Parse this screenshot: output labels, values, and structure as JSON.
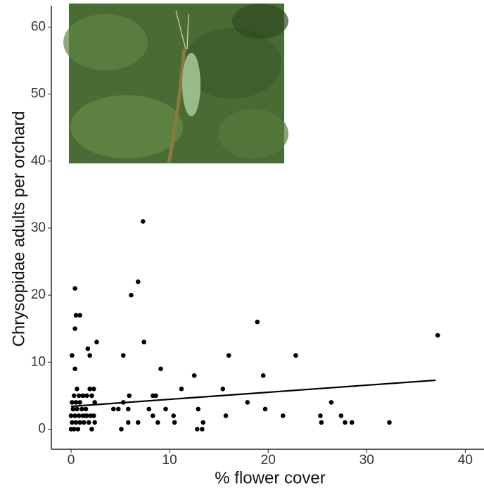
{
  "chart_data": {
    "type": "scatter",
    "x_label": "% flower cover",
    "y_label": "Chrysopidae adults per orchard",
    "xlim": [
      -2,
      41.9
    ],
    "ylim": [
      -3,
      63.2
    ],
    "xticks": [
      0,
      10,
      20,
      30,
      40
    ],
    "yticks": [
      0,
      10,
      20,
      30,
      40,
      50,
      60
    ],
    "color": "#000000",
    "x": [
      0.4,
      0.5,
      0.9,
      0.4,
      0.1,
      0.4,
      1.7,
      1.9,
      2.6,
      7.3,
      6.8,
      6.1,
      7.4,
      5.3,
      9.1,
      11.2,
      12.5,
      15.4,
      16,
      18.9,
      19.5,
      22.8,
      37.2,
      17.9,
      19.7,
      21.5,
      25.3,
      25.4,
      26.4,
      27.4,
      27.8,
      28.5,
      32.3,
      15.7,
      12.9,
      12.8,
      13.3,
      13.4,
      10.4,
      10.5,
      9.6,
      8.3,
      8.6,
      7.9,
      8.3,
      8.8,
      6.8,
      5.9,
      5.8,
      5.8,
      5.3,
      5.1,
      4.3,
      4.8,
      1.9,
      2.3,
      2.1,
      2.4,
      2.3,
      2.4,
      2.1,
      0,
      0.3,
      0.7,
      0.1,
      0.5,
      0.9,
      1.3,
      0,
      0.4,
      0.8,
      1.2,
      1.6,
      2,
      0.2,
      0.6,
      1.1,
      1.5,
      0.1,
      0.5,
      0.9,
      0.3,
      0.8,
      1.2,
      1.6,
      0.6,
      1.5,
      1.8
    ],
    "values": [
      21,
      17,
      17,
      15,
      11,
      9,
      12,
      11,
      13,
      31,
      22,
      20,
      13,
      11,
      9,
      6,
      8,
      6,
      11,
      16,
      8,
      11,
      14,
      4,
      3,
      2,
      2,
      1,
      4,
      2,
      1,
      1,
      1,
      2,
      3,
      0,
      0,
      1,
      2,
      1,
      3,
      5,
      5,
      3,
      2,
      1,
      1,
      5,
      3,
      1,
      4,
      0,
      3,
      3,
      6,
      6,
      5,
      4,
      2,
      1,
      0,
      0,
      0,
      0,
      1,
      1,
      1,
      1,
      2,
      2,
      2,
      2,
      2,
      2,
      3,
      3,
      3,
      3,
      4,
      4,
      4,
      5,
      5,
      5,
      5,
      6,
      2,
      1
    ],
    "trend": {
      "x": [
        0,
        37
      ],
      "values": [
        3.4,
        7.3
      ]
    }
  }
}
